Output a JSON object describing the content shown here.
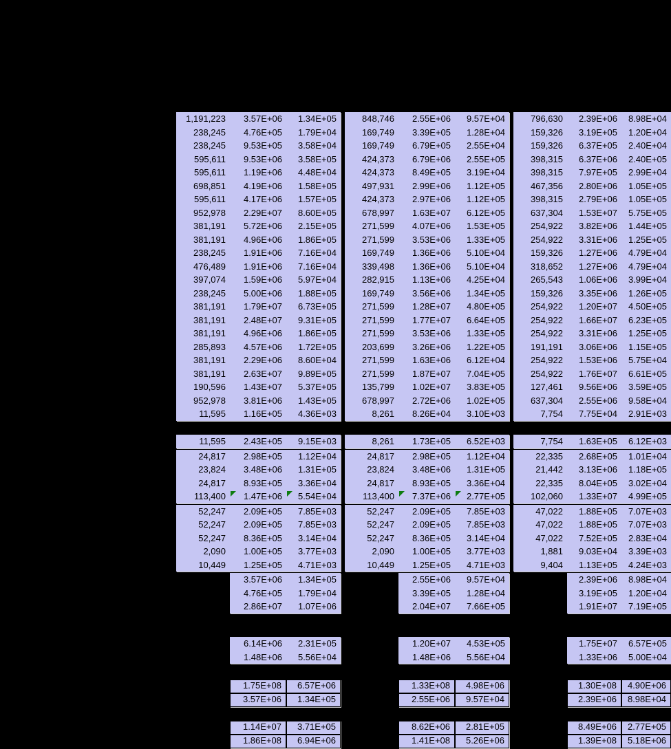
{
  "app": {
    "background_color": "#000000",
    "cell_background_color": "#C6C6F3",
    "cell_text_color": "#000000",
    "indicator_color": "#0E7C10",
    "indicator_icon": "comment-indicator-icon"
  },
  "table": {
    "groups": [
      {
        "name": "column-group-1",
        "rows_main": [
          [
            "1,191,223",
            "3.57E+06",
            "1.34E+05"
          ],
          [
            "238,245",
            "4.76E+05",
            "1.79E+04"
          ],
          [
            "238,245",
            "9.53E+05",
            "3.58E+04"
          ],
          [
            "595,611",
            "9.53E+06",
            "3.58E+05"
          ],
          [
            "595,611",
            "1.19E+06",
            "4.48E+04"
          ],
          [
            "698,851",
            "4.19E+06",
            "1.58E+05"
          ],
          [
            "595,611",
            "4.17E+06",
            "1.57E+05"
          ],
          [
            "952,978",
            "2.29E+07",
            "8.60E+05"
          ],
          [
            "381,191",
            "5.72E+06",
            "2.15E+05"
          ],
          [
            "381,191",
            "4.96E+06",
            "1.86E+05"
          ],
          [
            "238,245",
            "1.91E+06",
            "7.16E+04"
          ],
          [
            "476,489",
            "1.91E+06",
            "7.16E+04"
          ],
          [
            "397,074",
            "1.59E+06",
            "5.97E+04"
          ],
          [
            "238,245",
            "5.00E+06",
            "1.88E+05"
          ],
          [
            "381,191",
            "1.79E+07",
            "6.73E+05"
          ],
          [
            "381,191",
            "2.48E+07",
            "9.31E+05"
          ],
          [
            "381,191",
            "4.96E+06",
            "1.86E+05"
          ],
          [
            "285,893",
            "4.57E+06",
            "1.72E+05"
          ],
          [
            "381,191",
            "2.29E+06",
            "8.60E+04"
          ],
          [
            "381,191",
            "2.63E+07",
            "9.89E+05"
          ],
          [
            "190,596",
            "1.43E+07",
            "5.37E+05"
          ],
          [
            "952,978",
            "3.81E+06",
            "1.43E+05"
          ],
          [
            "11,595",
            "1.16E+05",
            "4.36E+03"
          ]
        ],
        "row_subtotal": [
          "11,595",
          "2.43E+05",
          "9.15E+03"
        ],
        "rows_set2": [
          [
            "24,817",
            "2.98E+05",
            "1.12E+04"
          ],
          [
            "23,824",
            "3.48E+06",
            "1.31E+05"
          ],
          [
            "24,817",
            "8.93E+05",
            "3.36E+04"
          ],
          [
            "113,400",
            "1.47E+06",
            "5.54E+04"
          ]
        ],
        "set2_indicators": [
          {
            "row": 3,
            "col": 1
          },
          {
            "row": 3,
            "col": 2
          }
        ],
        "rows_set3": [
          [
            "52,247",
            "2.09E+05",
            "7.85E+03"
          ],
          [
            "52,247",
            "2.09E+05",
            "7.85E+03"
          ],
          [
            "52,247",
            "8.36E+05",
            "3.14E+04"
          ],
          [
            "2,090",
            "1.00E+05",
            "3.77E+03"
          ],
          [
            "10,449",
            "1.25E+05",
            "4.71E+03"
          ]
        ],
        "rows_pairs1": [
          [
            "3.57E+06",
            "1.34E+05"
          ],
          [
            "4.76E+05",
            "1.79E+04"
          ],
          [
            "2.86E+07",
            "1.07E+06"
          ]
        ],
        "rows_pairs2": [
          [
            "6.14E+06",
            "2.31E+05"
          ],
          [
            "1.48E+06",
            "5.56E+04"
          ]
        ],
        "rows_boxed1": [
          [
            "1.75E+08",
            "6.57E+06"
          ],
          [
            "3.57E+06",
            "1.34E+05"
          ]
        ],
        "rows_boxed2": [
          [
            "1.14E+07",
            "3.71E+05"
          ],
          [
            "1.86E+08",
            "6.94E+06"
          ]
        ]
      },
      {
        "name": "column-group-2",
        "rows_main": [
          [
            "848,746",
            "2.55E+06",
            "9.57E+04"
          ],
          [
            "169,749",
            "3.39E+05",
            "1.28E+04"
          ],
          [
            "169,749",
            "6.79E+05",
            "2.55E+04"
          ],
          [
            "424,373",
            "6.79E+06",
            "2.55E+05"
          ],
          [
            "424,373",
            "8.49E+05",
            "3.19E+04"
          ],
          [
            "497,931",
            "2.99E+06",
            "1.12E+05"
          ],
          [
            "424,373",
            "2.97E+06",
            "1.12E+05"
          ],
          [
            "678,997",
            "1.63E+07",
            "6.12E+05"
          ],
          [
            "271,599",
            "4.07E+06",
            "1.53E+05"
          ],
          [
            "271,599",
            "3.53E+06",
            "1.33E+05"
          ],
          [
            "169,749",
            "1.36E+06",
            "5.10E+04"
          ],
          [
            "339,498",
            "1.36E+06",
            "5.10E+04"
          ],
          [
            "282,915",
            "1.13E+06",
            "4.25E+04"
          ],
          [
            "169,749",
            "3.56E+06",
            "1.34E+05"
          ],
          [
            "271,599",
            "1.28E+07",
            "4.80E+05"
          ],
          [
            "271,599",
            "1.77E+07",
            "6.64E+05"
          ],
          [
            "271,599",
            "3.53E+06",
            "1.33E+05"
          ],
          [
            "203,699",
            "3.26E+06",
            "1.22E+05"
          ],
          [
            "271,599",
            "1.63E+06",
            "6.12E+04"
          ],
          [
            "271,599",
            "1.87E+07",
            "7.04E+05"
          ],
          [
            "135,799",
            "1.02E+07",
            "3.83E+05"
          ],
          [
            "678,997",
            "2.72E+06",
            "1.02E+05"
          ],
          [
            "8,261",
            "8.26E+04",
            "3.10E+03"
          ]
        ],
        "row_subtotal": [
          "8,261",
          "1.73E+05",
          "6.52E+03"
        ],
        "rows_set2": [
          [
            "24,817",
            "2.98E+05",
            "1.12E+04"
          ],
          [
            "23,824",
            "3.48E+06",
            "1.31E+05"
          ],
          [
            "24,817",
            "8.93E+05",
            "3.36E+04"
          ],
          [
            "113,400",
            "7.37E+06",
            "2.77E+05"
          ]
        ],
        "set2_indicators": [
          {
            "row": 3,
            "col": 1
          },
          {
            "row": 3,
            "col": 2
          }
        ],
        "rows_set3": [
          [
            "52,247",
            "2.09E+05",
            "7.85E+03"
          ],
          [
            "52,247",
            "2.09E+05",
            "7.85E+03"
          ],
          [
            "52,247",
            "8.36E+05",
            "3.14E+04"
          ],
          [
            "2,090",
            "1.00E+05",
            "3.77E+03"
          ],
          [
            "10,449",
            "1.25E+05",
            "4.71E+03"
          ]
        ],
        "rows_pairs1": [
          [
            "2.55E+06",
            "9.57E+04"
          ],
          [
            "3.39E+05",
            "1.28E+04"
          ],
          [
            "2.04E+07",
            "7.66E+05"
          ]
        ],
        "rows_pairs2": [
          [
            "1.20E+07",
            "4.53E+05"
          ],
          [
            "1.48E+06",
            "5.56E+04"
          ]
        ],
        "rows_boxed1": [
          [
            "1.33E+08",
            "4.98E+06"
          ],
          [
            "2.55E+06",
            "9.57E+04"
          ]
        ],
        "rows_boxed2": [
          [
            "8.62E+06",
            "2.81E+05"
          ],
          [
            "1.41E+08",
            "5.26E+06"
          ]
        ]
      },
      {
        "name": "column-group-3",
        "rows_main": [
          [
            "796,630",
            "2.39E+06",
            "8.98E+04"
          ],
          [
            "159,326",
            "3.19E+05",
            "1.20E+04"
          ],
          [
            "159,326",
            "6.37E+05",
            "2.40E+04"
          ],
          [
            "398,315",
            "6.37E+06",
            "2.40E+05"
          ],
          [
            "398,315",
            "7.97E+05",
            "2.99E+04"
          ],
          [
            "467,356",
            "2.80E+06",
            "1.05E+05"
          ],
          [
            "398,315",
            "2.79E+06",
            "1.05E+05"
          ],
          [
            "637,304",
            "1.53E+07",
            "5.75E+05"
          ],
          [
            "254,922",
            "3.82E+06",
            "1.44E+05"
          ],
          [
            "254,922",
            "3.31E+06",
            "1.25E+05"
          ],
          [
            "159,326",
            "1.27E+06",
            "4.79E+04"
          ],
          [
            "318,652",
            "1.27E+06",
            "4.79E+04"
          ],
          [
            "265,543",
            "1.06E+06",
            "3.99E+04"
          ],
          [
            "159,326",
            "3.35E+06",
            "1.26E+05"
          ],
          [
            "254,922",
            "1.20E+07",
            "4.50E+05"
          ],
          [
            "254,922",
            "1.66E+07",
            "6.23E+05"
          ],
          [
            "254,922",
            "3.31E+06",
            "1.25E+05"
          ],
          [
            "191,191",
            "3.06E+06",
            "1.15E+05"
          ],
          [
            "254,922",
            "1.53E+06",
            "5.75E+04"
          ],
          [
            "254,922",
            "1.76E+07",
            "6.61E+05"
          ],
          [
            "127,461",
            "9.56E+06",
            "3.59E+05"
          ],
          [
            "637,304",
            "2.55E+06",
            "9.58E+04"
          ],
          [
            "7,754",
            "7.75E+04",
            "2.91E+03"
          ]
        ],
        "row_subtotal": [
          "7,754",
          "1.63E+05",
          "6.12E+03"
        ],
        "rows_set2": [
          [
            "22,335",
            "2.68E+05",
            "1.01E+04"
          ],
          [
            "21,442",
            "3.13E+06",
            "1.18E+05"
          ],
          [
            "22,335",
            "8.04E+05",
            "3.02E+04"
          ],
          [
            "102,060",
            "1.33E+07",
            "4.99E+05"
          ]
        ],
        "set2_indicators": [],
        "rows_set3": [
          [
            "47,022",
            "1.88E+05",
            "7.07E+03"
          ],
          [
            "47,022",
            "1.88E+05",
            "7.07E+03"
          ],
          [
            "47,022",
            "7.52E+05",
            "2.83E+04"
          ],
          [
            "1,881",
            "9.03E+04",
            "3.39E+03"
          ],
          [
            "9,404",
            "1.13E+05",
            "4.24E+03"
          ]
        ],
        "rows_pairs1": [
          [
            "2.39E+06",
            "8.98E+04"
          ],
          [
            "3.19E+05",
            "1.20E+04"
          ],
          [
            "1.91E+07",
            "7.19E+05"
          ]
        ],
        "rows_pairs2": [
          [
            "1.75E+07",
            "6.57E+05"
          ],
          [
            "1.33E+06",
            "5.00E+04"
          ]
        ],
        "rows_boxed1": [
          [
            "1.30E+08",
            "4.90E+06"
          ],
          [
            "2.39E+06",
            "8.98E+04"
          ]
        ],
        "rows_boxed2": [
          [
            "8.49E+06",
            "2.77E+05"
          ],
          [
            "1.39E+08",
            "5.18E+06"
          ]
        ]
      }
    ]
  }
}
